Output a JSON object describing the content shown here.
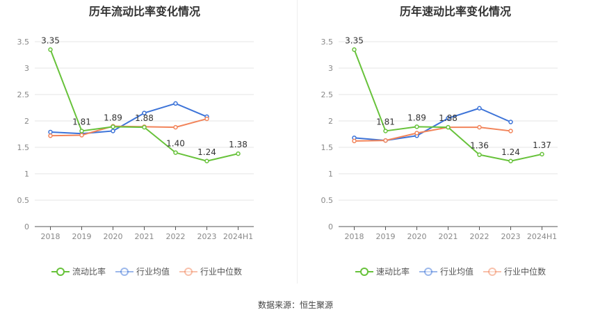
{
  "source": "数据来源：恒生聚源",
  "colors": {
    "company": "#67c23a",
    "avg": "#3c73d8",
    "median": "#f2845a"
  },
  "chart_data": [
    {
      "type": "line",
      "title": "历年流动比率变化情况",
      "categories": [
        "2018",
        "2019",
        "2020",
        "2021",
        "2022",
        "2023",
        "2024H1"
      ],
      "ylim": [
        0,
        3.5
      ],
      "yticks": [
        "0",
        "0.5",
        "1",
        "1.5",
        "2",
        "2.5",
        "3",
        "3.5"
      ],
      "series": [
        {
          "name": "流动比率",
          "key": "company",
          "values": [
            3.35,
            1.81,
            1.89,
            1.88,
            1.4,
            1.24,
            1.38
          ],
          "labels": [
            "3.35",
            "1.81",
            "1.89",
            "1.88",
            "1.40",
            "1.24",
            "1.38"
          ]
        },
        {
          "name": "行业均值",
          "key": "avg",
          "values": [
            1.79,
            1.76,
            1.81,
            2.15,
            2.33,
            2.08,
            null
          ]
        },
        {
          "name": "行业中位数",
          "key": "median",
          "values": [
            1.72,
            1.73,
            1.9,
            1.89,
            1.88,
            2.04,
            null
          ]
        }
      ]
    },
    {
      "type": "line",
      "title": "历年速动比率变化情况",
      "categories": [
        "2018",
        "2019",
        "2020",
        "2021",
        "2022",
        "2023",
        "2024H1"
      ],
      "ylim": [
        0,
        3.5
      ],
      "yticks": [
        "0",
        "0.5",
        "1",
        "1.5",
        "2",
        "2.5",
        "3",
        "3.5"
      ],
      "series": [
        {
          "name": "速动比率",
          "key": "company",
          "values": [
            3.35,
            1.81,
            1.89,
            1.88,
            1.36,
            1.24,
            1.37
          ],
          "labels": [
            "3.35",
            "1.81",
            "1.89",
            "1.88",
            "1.36",
            "1.24",
            "1.37"
          ]
        },
        {
          "name": "行业均值",
          "key": "avg",
          "values": [
            1.68,
            1.63,
            1.72,
            2.05,
            2.24,
            1.98,
            null
          ]
        },
        {
          "name": "行业中位数",
          "key": "median",
          "values": [
            1.62,
            1.63,
            1.77,
            1.88,
            1.88,
            1.81,
            null
          ]
        }
      ]
    }
  ]
}
